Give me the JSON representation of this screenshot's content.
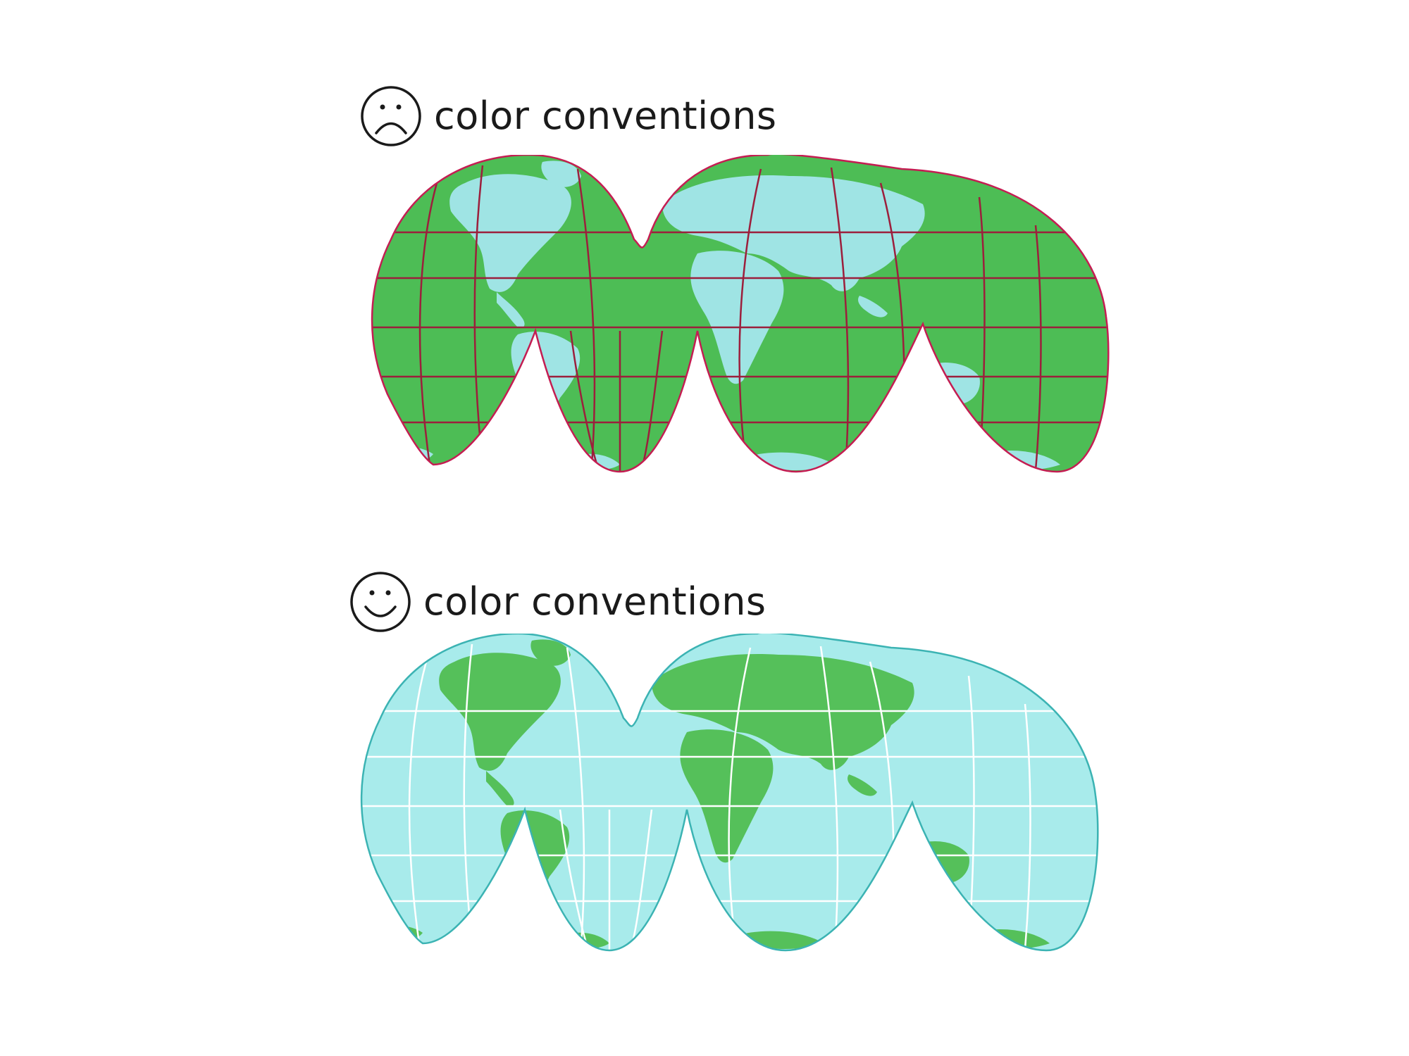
{
  "panels": [
    {
      "id": "bad",
      "face": "sad-face-icon",
      "label": "color conventions",
      "colors": {
        "ocean": "#4dbd55",
        "land": "#9fe4e4",
        "graticule": "#9c1f3c",
        "outline": "#c41d52"
      }
    },
    {
      "id": "good",
      "face": "happy-face-icon",
      "label": "color conventions",
      "colors": {
        "ocean": "#a8ebeb",
        "land": "#55c05a",
        "graticule": "#ffffff",
        "outline": "#3bb3b3"
      }
    }
  ]
}
